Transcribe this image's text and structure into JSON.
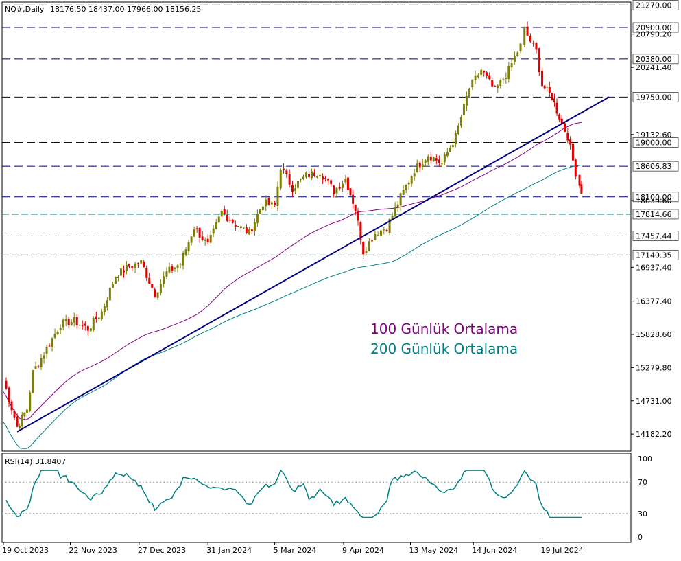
{
  "header": {
    "symbol": "NQ#,Daily",
    "ohlc": "18176.50 18437.00 17966.00 18156.25"
  },
  "colors": {
    "bull": "#808000",
    "bear": "#e00000",
    "ma100": "#800080",
    "ma200": "#008080",
    "trendline": "#000080",
    "levels": "#000080",
    "rsi": "#008080"
  },
  "annotations": {
    "ma100_label": "100 Günlük Ortalama",
    "ma200_label": "200 Günlük Ortalama"
  },
  "chart_data": [
    {
      "type": "candlestick",
      "title": "NQ#,Daily",
      "ylim": [
        13900,
        21320
      ],
      "y_tick_labels": [
        "20790.20",
        "20241.40",
        "19132.60",
        "18039.60",
        "16937.40",
        "16377.40",
        "15828.60",
        "15279.80",
        "14731.00",
        "14182.20"
      ],
      "x_tick_labels": [
        "19 Oct 2023",
        "22 Nov 2023",
        "27 Dec 2023",
        "31 Jan 2024",
        "5 Mar 2024",
        "9 Apr 2024",
        "13 May 2024",
        "14 Jun 2024",
        "19 Jul 2024"
      ],
      "levels": [
        {
          "value": 21270.0,
          "label": "21270.00",
          "style": "dashed"
        },
        {
          "value": 20900.0,
          "label": "20900.00",
          "style": "dashed"
        },
        {
          "value": 20380.0,
          "label": "20380.00",
          "style": "dashed"
        },
        {
          "value": 19750.0,
          "label": "19750.00",
          "style": "dashed"
        },
        {
          "value": 19000.0,
          "label": "19000.00",
          "style": "dashed"
        },
        {
          "value": 18606.83,
          "label": "18606.83",
          "style": "dashed"
        },
        {
          "value": 18100.0,
          "label": "18100.00",
          "style": "dashed"
        },
        {
          "value": 17814.66,
          "label": "17814.66",
          "style": "dashdot"
        },
        {
          "value": 17457.44,
          "label": "17457.44",
          "style": "dashdot"
        },
        {
          "value": 17140.35,
          "label": "17140.35",
          "style": "dashdot"
        }
      ],
      "current_price": 18156.25,
      "trendline": {
        "from": {
          "date": "2023-10-26",
          "price": 14220
        },
        "to": {
          "date": "2024-08-22",
          "price": 19750
        }
      },
      "close_path": [
        [
          "2023-10-19",
          15080
        ],
        [
          "2023-10-26",
          14300
        ],
        [
          "2023-10-31",
          14600
        ],
        [
          "2023-11-03",
          15200
        ],
        [
          "2023-11-10",
          15600
        ],
        [
          "2023-11-17",
          16000
        ],
        [
          "2023-11-24",
          16050
        ],
        [
          "2023-12-01",
          15920
        ],
        [
          "2023-12-08",
          16200
        ],
        [
          "2023-12-15",
          16800
        ],
        [
          "2023-12-22",
          16950
        ],
        [
          "2023-12-28",
          17020
        ],
        [
          "2024-01-04",
          16500
        ],
        [
          "2024-01-10",
          16850
        ],
        [
          "2024-01-17",
          17000
        ],
        [
          "2024-01-24",
          17600
        ],
        [
          "2024-01-31",
          17300
        ],
        [
          "2024-02-07",
          17850
        ],
        [
          "2024-02-14",
          17650
        ],
        [
          "2024-02-21",
          17500
        ],
        [
          "2024-02-28",
          18000
        ],
        [
          "2024-03-05",
          17950
        ],
        [
          "2024-03-08",
          18600
        ],
        [
          "2024-03-14",
          18250
        ],
        [
          "2024-03-21",
          18450
        ],
        [
          "2024-03-28",
          18520
        ],
        [
          "2024-04-04",
          18200
        ],
        [
          "2024-04-10",
          18400
        ],
        [
          "2024-04-15",
          17900
        ],
        [
          "2024-04-19",
          17200
        ],
        [
          "2024-04-25",
          17500
        ],
        [
          "2024-05-01",
          17600
        ],
        [
          "2024-05-08",
          18100
        ],
        [
          "2024-05-15",
          18550
        ],
        [
          "2024-05-22",
          18800
        ],
        [
          "2024-05-29",
          18650
        ],
        [
          "2024-06-05",
          19100
        ],
        [
          "2024-06-12",
          19900
        ],
        [
          "2024-06-18",
          20200
        ],
        [
          "2024-06-25",
          19850
        ],
        [
          "2024-07-02",
          20200
        ],
        [
          "2024-07-08",
          20600
        ],
        [
          "2024-07-10",
          20850
        ],
        [
          "2024-07-16",
          20500
        ],
        [
          "2024-07-19",
          19950
        ],
        [
          "2024-07-24",
          19750
        ],
        [
          "2024-07-29",
          19300
        ],
        [
          "2024-08-01",
          19100
        ],
        [
          "2024-08-05",
          18500
        ],
        [
          "2024-08-07",
          18300
        ],
        [
          "2024-08-08",
          18156
        ]
      ]
    },
    {
      "type": "line",
      "title": "RSI(14) 31.8407",
      "ylim": [
        0,
        100
      ],
      "y_tick_labels": [
        "100",
        "70",
        "30",
        "0"
      ],
      "reference_levels": [
        70,
        30
      ],
      "series": [
        {
          "name": "RSI(14)",
          "last": 31.8407
        }
      ]
    }
  ]
}
